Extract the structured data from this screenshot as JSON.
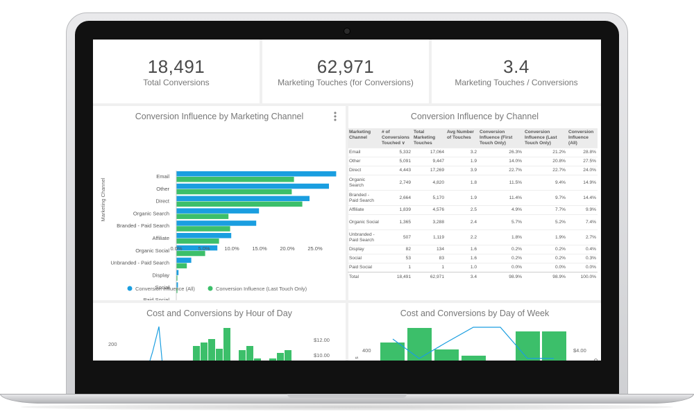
{
  "kpis": [
    {
      "value": "18,491",
      "label": "Total Conversions"
    },
    {
      "value": "62,971",
      "label": "Marketing Touches (for Conversions)"
    },
    {
      "value": "3.4",
      "label": "Marketing Touches / Conversions"
    }
  ],
  "bar_chart": {
    "title": "Conversion Influence by Marketing Channel",
    "ylabel": "Marketing Channel",
    "menu_icon": "kebab-menu-icon",
    "colors": {
      "all": "#1a9ee0",
      "last": "#3cbf6a"
    },
    "legend": [
      "Conversion Influence (All)",
      "Conversion Influence (Last Touch Only)"
    ]
  },
  "chart_data": [
    {
      "type": "bar",
      "orientation": "horizontal",
      "categories": [
        "Email",
        "Other",
        "Direct",
        "Organic Search",
        "Branded - Paid Search",
        "Affiliate",
        "Organic Social",
        "Unbranded - Paid Search",
        "Display",
        "Social",
        "Paid Social"
      ],
      "series": [
        {
          "name": "Conversion Influence (All)",
          "values": [
            28.8,
            27.5,
            24.0,
            14.9,
            14.4,
            9.9,
            7.4,
            2.7,
            0.4,
            0.3,
            0.0
          ]
        },
        {
          "name": "Conversion Influence (Last Touch Only)",
          "values": [
            21.2,
            20.8,
            22.7,
            9.4,
            9.7,
            7.7,
            5.2,
            1.9,
            0.2,
            0.2,
            0.0
          ]
        }
      ],
      "xticks": [
        "0.0%",
        "5.0%",
        "10.0%",
        "15.0%",
        "20.0%",
        "25.0%"
      ],
      "xlim": [
        0,
        29.5
      ],
      "ylabel": "Marketing Channel",
      "legend": "bottom"
    },
    {
      "type": "bar",
      "title": "Cost and Conversions by Hour of Day",
      "y_tick": "200",
      "right_ticks": [
        "$12.00",
        "$10.00"
      ]
    },
    {
      "type": "bar",
      "title": "Cost and Conversions by Day of Week",
      "y_tick": "400",
      "right_ticks": [
        "$4.00"
      ],
      "ylabel_fragment": "s",
      "right_label_fragment": "C"
    }
  ],
  "table": {
    "title": "Conversion Influence by Channel",
    "headers": [
      "Marketing Channel",
      "# of Conversions Touched ∨",
      "Total Marketing Touches",
      "Avg Number of Touches",
      "Conversion Influence (First Touch Only)",
      "Conversion Influence (Last Touch Only)",
      "Conversion Influence (All)"
    ],
    "rows": [
      [
        "Email",
        "5,332",
        "17,064",
        "3.2",
        "26.3%",
        "21.2%",
        "28.8%"
      ],
      [
        "Other",
        "5,091",
        "9,447",
        "1.9",
        "14.0%",
        "20.8%",
        "27.5%"
      ],
      [
        "Direct",
        "4,443",
        "17,269",
        "3.9",
        "22.7%",
        "22.7%",
        "24.0%"
      ],
      [
        "Organic Search",
        "2,749",
        "4,820",
        "1.8",
        "11.5%",
        "9.4%",
        "14.9%"
      ],
      [
        "Branded - Paid Search",
        "2,664",
        "5,170",
        "1.9",
        "11.4%",
        "9.7%",
        "14.4%"
      ],
      [
        "Affiliate",
        "1,839",
        "4,576",
        "2.5",
        "4.9%",
        "7.7%",
        "9.9%"
      ],
      [
        "Organic Social",
        "1,365",
        "3,288",
        "2.4",
        "5.7%",
        "5.2%",
        "7.4%"
      ],
      [
        "Unbranded - Paid Search",
        "507",
        "1,119",
        "2.2",
        "1.8%",
        "1.9%",
        "2.7%"
      ],
      [
        "Display",
        "82",
        "134",
        "1.6",
        "0.2%",
        "0.2%",
        "0.4%"
      ],
      [
        "Social",
        "53",
        "83",
        "1.6",
        "0.2%",
        "0.2%",
        "0.3%"
      ],
      [
        "Paid Social",
        "1",
        "1",
        "1.0",
        "0.0%",
        "0.0%",
        "0.0%"
      ]
    ],
    "total": [
      "Total",
      "18,491",
      "62,971",
      "3.4",
      "98.9%",
      "98.9%",
      "100.0%"
    ]
  }
}
